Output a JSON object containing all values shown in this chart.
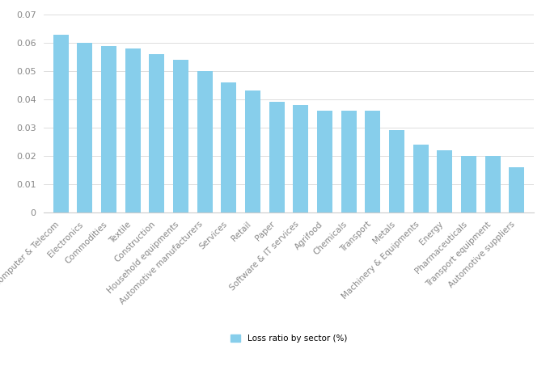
{
  "categories": [
    "Computer & Telecom",
    "Electronics",
    "Commodities",
    "Textile",
    "Construction",
    "Household equipments",
    "Automotive manufacturers",
    "Services",
    "Retail",
    "Paper",
    "Software & IT services",
    "Agrifood",
    "Chemicals",
    "Transport",
    "Metals",
    "Machinery & Equipments",
    "Energy",
    "Pharmaceuticals",
    "Transport equipment",
    "Automotive suppliers"
  ],
  "values": [
    0.063,
    0.06,
    0.059,
    0.058,
    0.056,
    0.054,
    0.05,
    0.046,
    0.043,
    0.039,
    0.038,
    0.036,
    0.036,
    0.036,
    0.029,
    0.024,
    0.022,
    0.02,
    0.02,
    0.016
  ],
  "bar_color": "#87CEEB",
  "bar_edge_color": "none",
  "ylim": [
    0,
    0.07
  ],
  "yticks": [
    0,
    0.01,
    0.02,
    0.03,
    0.04,
    0.05,
    0.06,
    0.07
  ],
  "legend_label": "Loss ratio by sector (%)",
  "legend_color": "#87CEEB",
  "background_color": "#ffffff",
  "grid_color": "#d0d0d0",
  "tick_fontsize": 8,
  "label_fontsize": 7.5,
  "bar_width": 0.65
}
